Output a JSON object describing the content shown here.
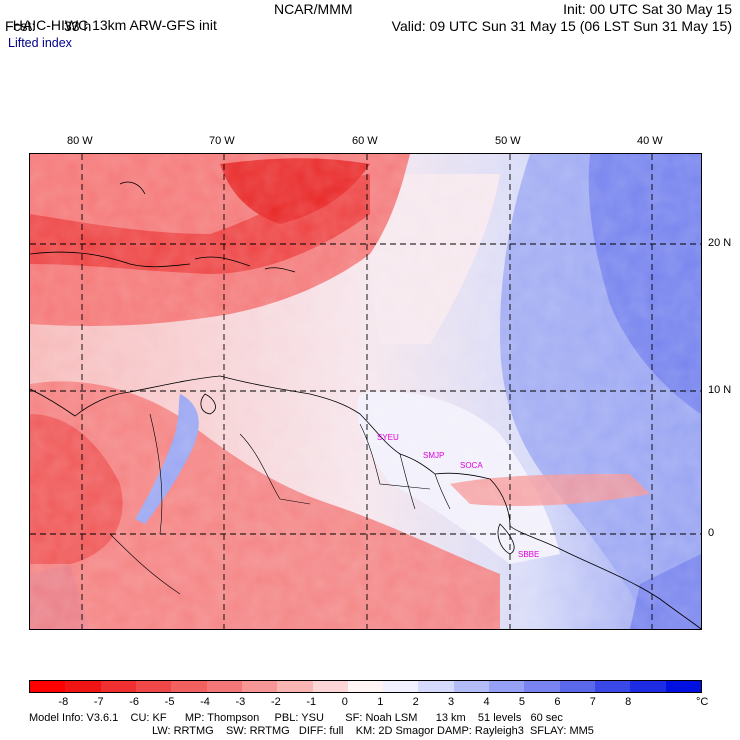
{
  "header": {
    "model": "HAIC-HIWC 13km ARW-GFS init",
    "org": "NCAR/MMM",
    "fcst_label": "Fcst:",
    "fcst_value": "33 h",
    "init": "Init: 00 UTC Sat 30 May 15",
    "valid": "Valid: 09 UTC Sun 31 May 15 (06 LST Sun 31 May 15)",
    "field": "Lifted index"
  },
  "axes": {
    "lon_ticks": [
      "80 W",
      "70 W",
      "60 W",
      "50 W",
      "40 W"
    ],
    "lat_ticks": [
      "20 N",
      "10 N",
      "0"
    ]
  },
  "stations": [
    "SYEU",
    "SMJP",
    "SOCA",
    "SBBE"
  ],
  "colorbar": {
    "labels": [
      "-8",
      "-7",
      "-6",
      "-5",
      "-4",
      "-3",
      "-2",
      "-1",
      "0",
      "1",
      "2",
      "3",
      "4",
      "5",
      "6",
      "7",
      "8"
    ],
    "unit": "°C",
    "colors": [
      "#ff0000",
      "#f01414",
      "#f03030",
      "#f04848",
      "#f26060",
      "#f47878",
      "#f69696",
      "#f9b4b4",
      "#fcd6d6",
      "#fff5f5",
      "#f0f0ff",
      "#d6dafc",
      "#b4bcf8",
      "#96a0f4",
      "#7a84f0",
      "#5c68ec",
      "#3a48e8",
      "#1e2ce4",
      "#0010e0"
    ]
  },
  "model_info": {
    "line1": "Model Info: V3.6.1    CU: KF      MP: Thompson     PBL: YSU       SF: Noah LSM      13 km    51 levels   60 sec",
    "line2": "LW: RRTMG    SW: RRTMG   DIFF: full    KM: 2D Smagor DAMP: Rayleigh3  SFLAY: MM5"
  }
}
